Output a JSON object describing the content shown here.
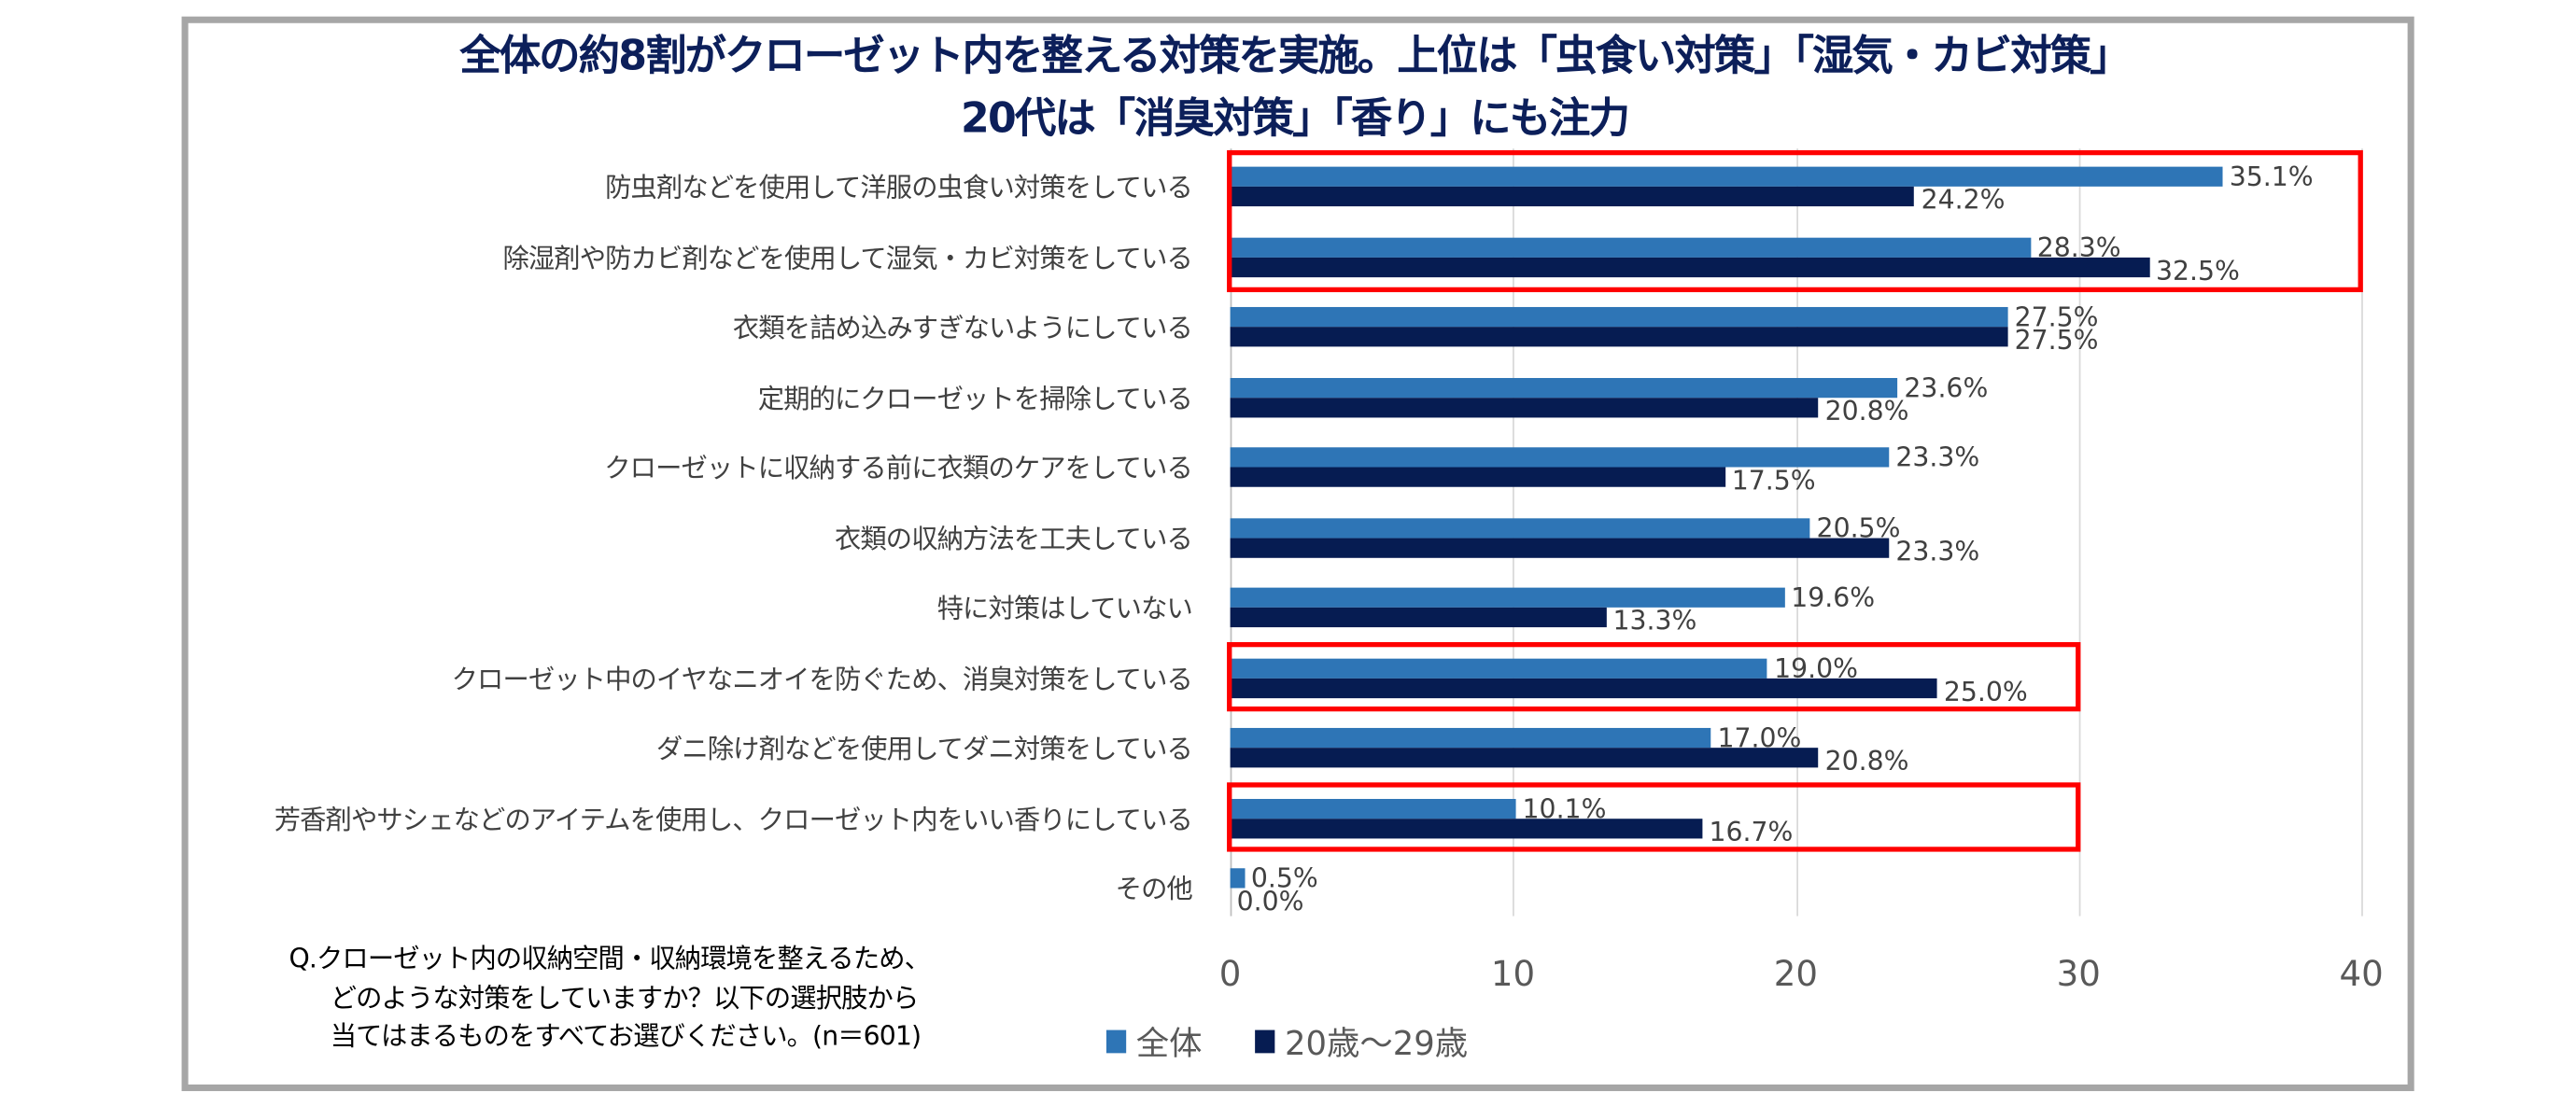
{
  "chart_data": {
    "type": "bar",
    "orientation": "horizontal",
    "title": [
      "全体の約8割がクローゼット内を整える対策を実施。上位は「虫食い対策」「湿気・カビ対策」",
      "20代は「消臭対策」「香り」にも注力"
    ],
    "categories": [
      "防虫剤などを使用して洋服の虫食い対策をしている",
      "除湿剤や防カビ剤などを使用して湿気・カビ対策をしている",
      "衣類を詰め込みすぎないようにしている",
      "定期的にクローゼットを掃除している",
      "クローゼットに収納する前に衣類のケアをしている",
      "衣類の収納方法を工夫している",
      "特に対策はしていない",
      "クローゼット中のイヤなニオイを防ぐため、消臭対策をしている",
      "ダニ除け剤などを使用してダニ対策をしている",
      "芳香剤やサシェなどのアイテムを使用し、クローゼット内をいい香りにしている",
      "その他"
    ],
    "series": [
      {
        "name": "全体",
        "color": "#2e75b6",
        "values": [
          35.1,
          28.3,
          27.5,
          23.6,
          23.3,
          20.5,
          19.6,
          19.0,
          17.0,
          10.1,
          0.5
        ],
        "labels": [
          "35.1%",
          "28.3%",
          "27.5%",
          "23.6%",
          "23.3%",
          "20.5%",
          "19.6%",
          "19.0%",
          "17.0%",
          "10.1%",
          "0.5%"
        ]
      },
      {
        "name": "20歳～29歳",
        "color": "#061c52",
        "values": [
          24.2,
          32.5,
          27.5,
          20.8,
          17.5,
          23.3,
          13.3,
          25.0,
          20.8,
          16.7,
          0.0
        ],
        "labels": [
          "24.2%",
          "32.5%",
          "27.5%",
          "20.8%",
          "17.5%",
          "23.3%",
          "13.3%",
          "25.0%",
          "20.8%",
          "16.7%",
          "0.0%"
        ]
      }
    ],
    "xlim": [
      0,
      40
    ],
    "xticks": [
      "0",
      "10",
      "20",
      "30",
      "40"
    ],
    "grid": true,
    "legend": "bottom",
    "highlighted_categories": [
      [
        0,
        1,
        40
      ],
      [
        7,
        7,
        30
      ],
      [
        9,
        9,
        30
      ]
    ],
    "note": [
      "Q.クローゼット内の収納空間・収納環境を整えるため、",
      "どのような対策をしていますか？以下の選択肢から",
      "当てはまるものをすべてお選びください。(n＝601)"
    ]
  }
}
